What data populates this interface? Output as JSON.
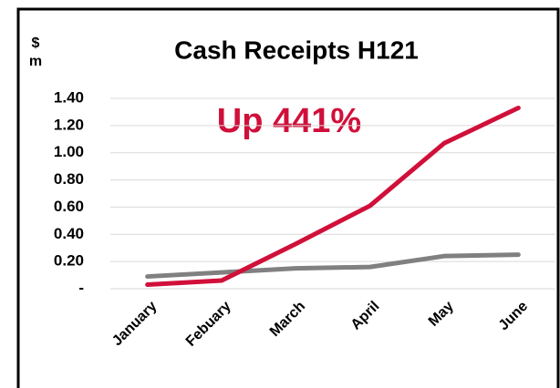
{
  "chart_data": {
    "type": "line",
    "title": "Cash Receipts H121",
    "y_label_lines": [
      "$",
      "m"
    ],
    "annotation": "Up 441%",
    "categories": [
      "January",
      "Febuary",
      "March",
      "April",
      "May",
      "June"
    ],
    "series": [
      {
        "color": "#d0103a",
        "values": [
          0.03,
          0.06,
          0.33,
          0.61,
          1.07,
          1.33
        ]
      },
      {
        "color": "#808080",
        "values": [
          0.09,
          0.12,
          0.15,
          0.16,
          0.24,
          0.25
        ]
      }
    ],
    "ylim": [
      0,
      1.4
    ],
    "yticks": [
      {
        "value": 0,
        "label": "-"
      },
      {
        "value": 0.2,
        "label": "0.20"
      },
      {
        "value": 0.4,
        "label": "0.40"
      },
      {
        "value": 0.6,
        "label": "0.60"
      },
      {
        "value": 0.8,
        "label": "0.80"
      },
      {
        "value": 1.0,
        "label": "1.00"
      },
      {
        "value": 1.2,
        "label": "1.20"
      },
      {
        "value": 1.4,
        "label": "1.40"
      }
    ],
    "grid": true
  }
}
